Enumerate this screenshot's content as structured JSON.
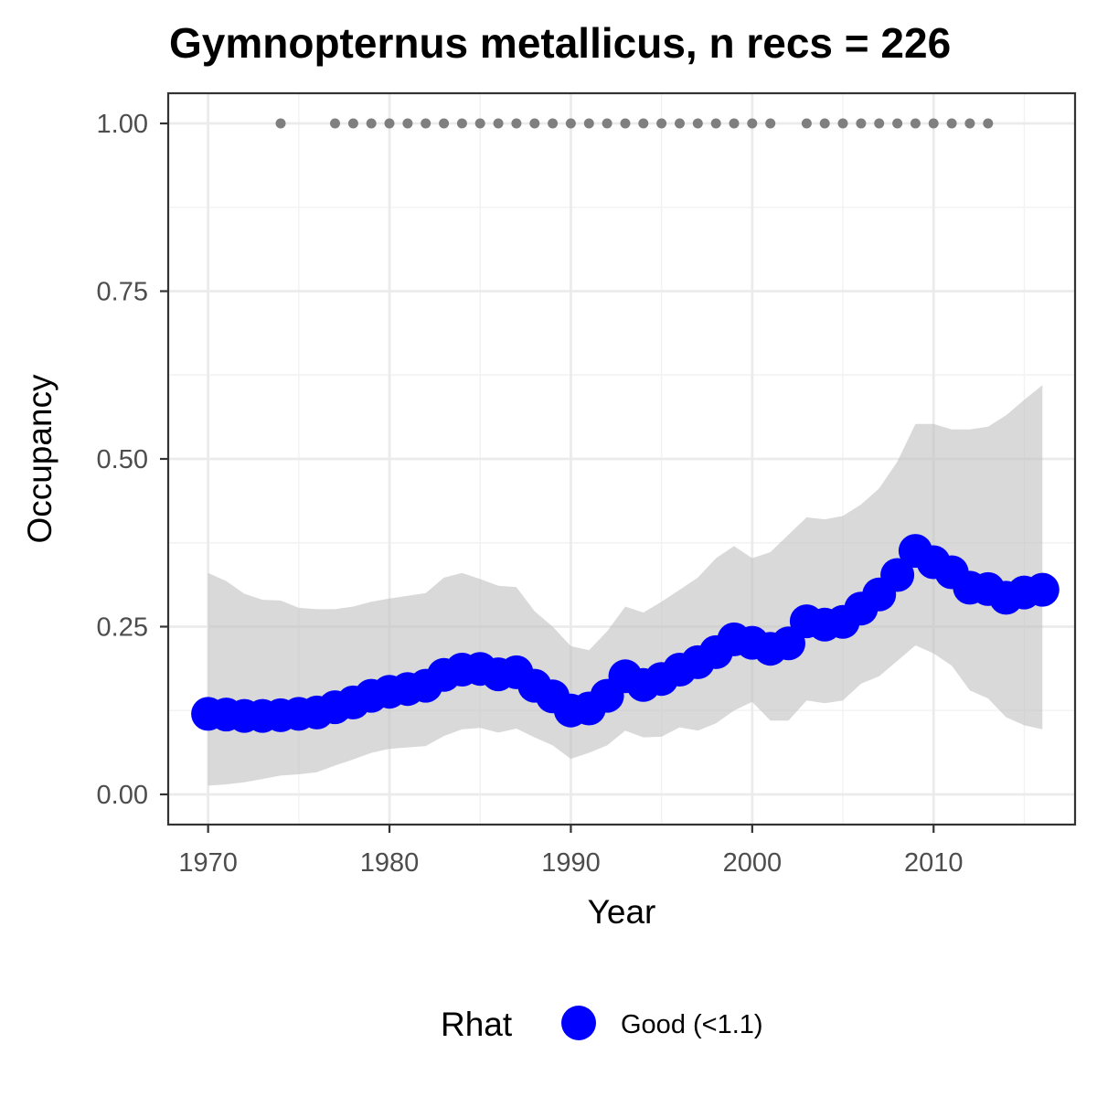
{
  "chart_data": {
    "type": "line",
    "title": "Gymnopternus metallicus, n recs = 226",
    "xlabel": "Year",
    "ylabel": "Occupancy",
    "xlim": [
      1967.8,
      2017.8
    ],
    "ylim": [
      -0.045,
      1.045
    ],
    "xticks": [
      1970,
      1980,
      1990,
      2000,
      2010
    ],
    "yticks": [
      "0.00",
      "0.25",
      "0.50",
      "0.75",
      "1.00"
    ],
    "grid": true,
    "legend": {
      "position": "bottom",
      "title": "Rhat",
      "entries": [
        {
          "label": "Good (<1.1)",
          "color": "#0000ff"
        }
      ]
    },
    "colors": {
      "line": "#0000ff",
      "ribbon": "#d9d9d9",
      "records": "#7f7f7f",
      "grid_major": "#ebebeb",
      "grid_minor": "#f2f2f2",
      "border": "#333333"
    },
    "series": [
      {
        "name": "Good (<1.1)",
        "x": [
          1970,
          1971,
          1972,
          1973,
          1974,
          1975,
          1976,
          1977,
          1978,
          1979,
          1980,
          1981,
          1982,
          1983,
          1984,
          1985,
          1986,
          1987,
          1988,
          1989,
          1990,
          1991,
          1992,
          1993,
          1994,
          1995,
          1996,
          1997,
          1998,
          1999,
          2000,
          2001,
          2002,
          2003,
          2004,
          2005,
          2006,
          2007,
          2008,
          2009,
          2010,
          2011,
          2012,
          2013,
          2014,
          2015,
          2016
        ],
        "y": [
          0.12,
          0.119,
          0.117,
          0.117,
          0.118,
          0.12,
          0.122,
          0.13,
          0.137,
          0.147,
          0.153,
          0.157,
          0.162,
          0.178,
          0.186,
          0.187,
          0.179,
          0.182,
          0.162,
          0.146,
          0.125,
          0.128,
          0.147,
          0.176,
          0.163,
          0.172,
          0.186,
          0.197,
          0.212,
          0.231,
          0.226,
          0.217,
          0.225,
          0.258,
          0.253,
          0.257,
          0.277,
          0.298,
          0.327,
          0.363,
          0.346,
          0.331,
          0.308,
          0.306,
          0.293,
          0.301,
          0.305
        ],
        "lower": [
          0.013,
          0.015,
          0.018,
          0.023,
          0.028,
          0.03,
          0.033,
          0.043,
          0.052,
          0.062,
          0.068,
          0.07,
          0.072,
          0.087,
          0.097,
          0.099,
          0.092,
          0.098,
          0.085,
          0.073,
          0.053,
          0.062,
          0.073,
          0.095,
          0.085,
          0.086,
          0.1,
          0.095,
          0.106,
          0.125,
          0.138,
          0.11,
          0.11,
          0.14,
          0.136,
          0.14,
          0.165,
          0.176,
          0.199,
          0.222,
          0.21,
          0.192,
          0.155,
          0.143,
          0.115,
          0.103,
          0.097
        ],
        "upper": [
          0.33,
          0.318,
          0.299,
          0.29,
          0.289,
          0.278,
          0.276,
          0.276,
          0.28,
          0.287,
          0.292,
          0.296,
          0.3,
          0.323,
          0.33,
          0.321,
          0.311,
          0.309,
          0.273,
          0.25,
          0.221,
          0.215,
          0.243,
          0.28,
          0.271,
          0.287,
          0.305,
          0.323,
          0.352,
          0.37,
          0.352,
          0.361,
          0.387,
          0.413,
          0.41,
          0.415,
          0.432,
          0.456,
          0.496,
          0.552,
          0.552,
          0.544,
          0.544,
          0.548,
          0.565,
          0.588,
          0.61
        ]
      }
    ],
    "records": {
      "name": "records",
      "years": [
        1974,
        1977,
        1978,
        1979,
        1980,
        1981,
        1982,
        1983,
        1984,
        1985,
        1986,
        1987,
        1988,
        1989,
        1990,
        1991,
        1992,
        1993,
        1994,
        1995,
        1996,
        1997,
        1998,
        1999,
        2000,
        2001,
        2003,
        2004,
        2005,
        2006,
        2007,
        2008,
        2009,
        2010,
        2011,
        2012,
        2013
      ],
      "y": 1.0
    }
  }
}
